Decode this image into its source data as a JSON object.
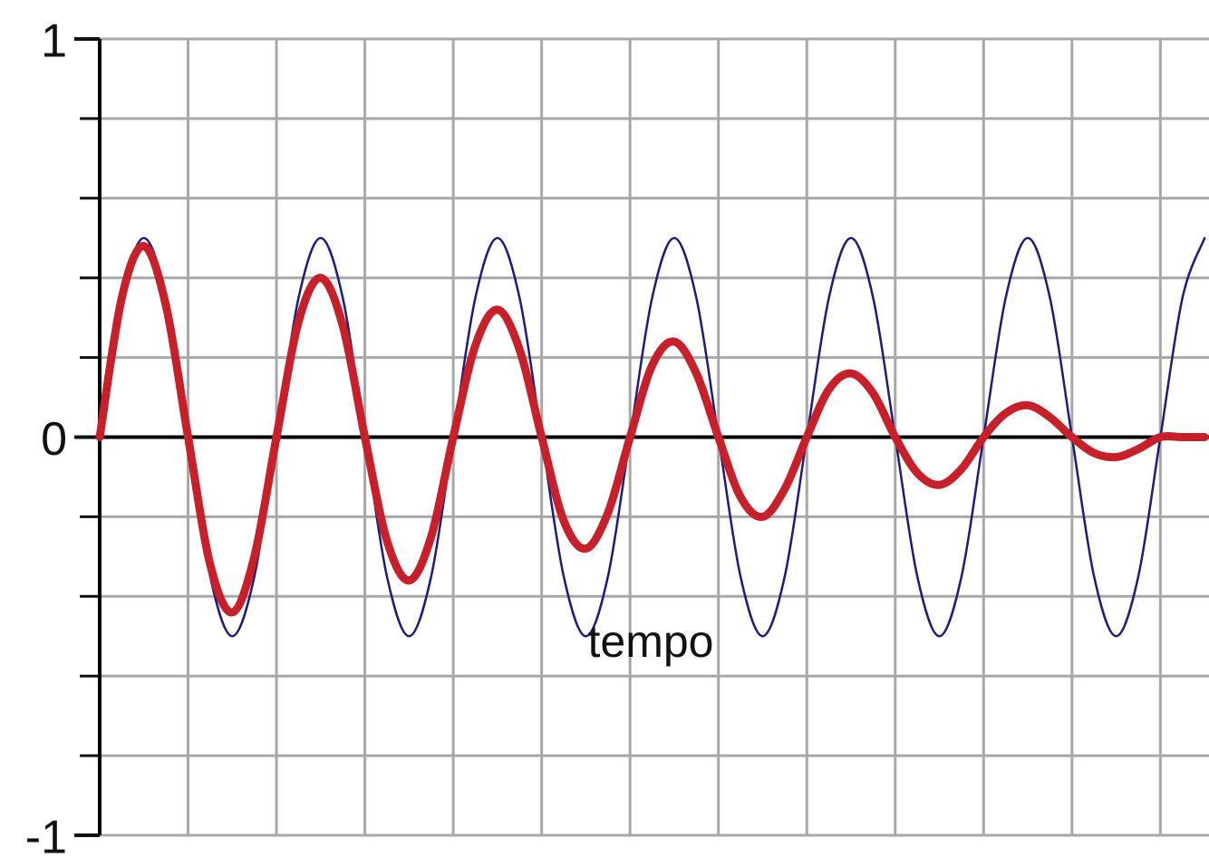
{
  "chart_data": {
    "type": "line",
    "x_label": "tempo",
    "x": [
      0,
      0.25,
      0.5,
      0.75,
      1,
      1.25,
      1.5,
      1.75,
      2,
      2.25,
      2.5,
      2.75,
      3,
      3.25,
      3.5,
      3.75,
      4,
      4.25,
      4.5,
      4.75,
      5,
      5.25,
      5.5,
      5.75,
      6,
      6.25,
      6.5,
      6.75,
      7,
      7.25,
      7.5,
      7.75,
      8,
      8.25,
      8.5,
      8.75,
      9,
      9.25,
      9.5,
      9.75,
      10,
      10.25,
      10.5,
      10.75,
      11,
      11.25,
      11.5,
      11.75,
      12,
      12.25,
      12.5
    ],
    "series": [
      {
        "color": "#1c1c7a",
        "width": 2.5,
        "values": [
          0,
          0.35,
          0.5,
          0.35,
          0,
          -0.35,
          -0.5,
          -0.35,
          0,
          0.35,
          0.5,
          0.35,
          0,
          -0.35,
          -0.5,
          -0.35,
          0,
          0.35,
          0.5,
          0.35,
          0,
          -0.35,
          -0.5,
          -0.35,
          0,
          0.35,
          0.5,
          0.35,
          0,
          -0.35,
          -0.5,
          -0.35,
          0,
          0.35,
          0.5,
          0.35,
          0,
          -0.35,
          -0.5,
          -0.35,
          0,
          0.35,
          0.5,
          0.35,
          0,
          -0.35,
          -0.5,
          -0.35,
          0,
          0.35,
          0.5
        ]
      },
      {
        "color": "#c8202a",
        "width": 9,
        "values": [
          0,
          0.35,
          0.48,
          0.33,
          0,
          -0.32,
          -0.44,
          -0.3,
          0,
          0.29,
          0.4,
          0.28,
          0,
          -0.26,
          -0.36,
          -0.25,
          0,
          0.23,
          0.32,
          0.22,
          0,
          -0.21,
          -0.28,
          -0.19,
          0,
          0.18,
          0.24,
          0.16,
          0,
          -0.15,
          -0.2,
          -0.13,
          0,
          0.12,
          0.16,
          0.11,
          0,
          -0.09,
          -0.12,
          -0.08,
          0,
          0.06,
          0.08,
          0.05,
          0,
          -0.04,
          -0.05,
          -0.03,
          0,
          0,
          0
        ]
      }
    ],
    "xlim": [
      0,
      12.55
    ],
    "xgrid": [
      1,
      2,
      3,
      4,
      5,
      6,
      7,
      8,
      9,
      10,
      11,
      12
    ],
    "ylim": [
      -1,
      1
    ],
    "yticks": [
      -1,
      0,
      1
    ],
    "minor_yticks": [
      -0.8,
      -0.6,
      -0.4,
      -0.2,
      0.2,
      0.4,
      0.6,
      0.8
    ],
    "grid": true
  }
}
